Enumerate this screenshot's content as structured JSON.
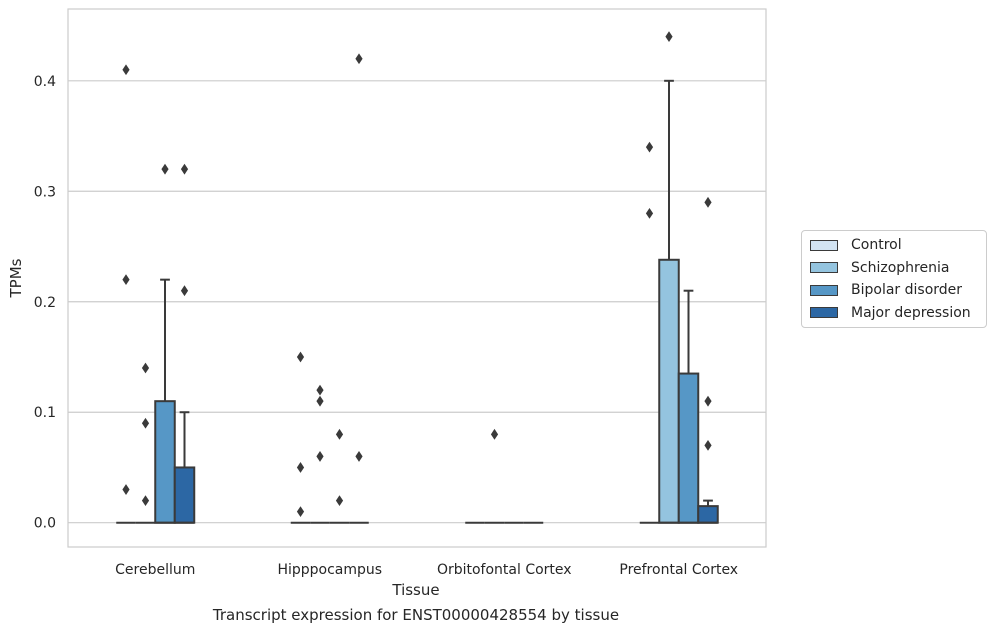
{
  "chart_data": {
    "type": "box",
    "xlabel": "Tissue",
    "ylabel": "TPMs",
    "ylim": [
      -0.022,
      0.465
    ],
    "yticks": [
      0.0,
      0.1,
      0.2,
      0.3,
      0.4
    ],
    "ytick_labels": [
      "0.0",
      "0.1",
      "0.2",
      "0.3",
      "0.4"
    ],
    "grid": "horizontal",
    "legend_position": "right",
    "categories": [
      "Cerebellum",
      "Hipppocampus",
      "Orbitofontal Cortex",
      "Prefrontal Cortex"
    ],
    "series": [
      {
        "name": "Control",
        "color": "#d3e4f3",
        "boxes": [
          {
            "q1": 0,
            "median": 0,
            "q3": 0,
            "whisker_low": 0,
            "whisker_high": 0,
            "outliers": [
              0.03,
              0.22,
              0.41
            ]
          },
          {
            "q1": 0,
            "median": 0,
            "q3": 0,
            "whisker_low": 0,
            "whisker_high": 0,
            "outliers": [
              0.01,
              0.05,
              0.15
            ]
          },
          {
            "q1": 0,
            "median": 0,
            "q3": 0,
            "whisker_low": 0,
            "whisker_high": 0,
            "outliers": []
          },
          {
            "q1": 0,
            "median": 0,
            "q3": 0,
            "whisker_low": 0,
            "whisker_high": 0,
            "outliers": [
              0.28,
              0.34
            ]
          }
        ]
      },
      {
        "name": "Schizophrenia",
        "color": "#94c4df",
        "boxes": [
          {
            "q1": 0,
            "median": 0,
            "q3": 0,
            "whisker_low": 0,
            "whisker_high": 0,
            "outliers": [
              0.02,
              0.09,
              0.14
            ]
          },
          {
            "q1": 0,
            "median": 0,
            "q3": 0,
            "whisker_low": 0,
            "whisker_high": 0,
            "outliers": [
              0.06,
              0.11,
              0.12
            ]
          },
          {
            "q1": 0,
            "median": 0,
            "q3": 0,
            "whisker_low": 0,
            "whisker_high": 0,
            "outliers": [
              0.08
            ]
          },
          {
            "q1": 0,
            "median": 0,
            "q3": 0.238,
            "whisker_low": 0,
            "whisker_high": 0.4,
            "outliers": [
              0.44
            ]
          }
        ]
      },
      {
        "name": "Bipolar disorder",
        "color": "#5697c6",
        "boxes": [
          {
            "q1": 0,
            "median": 0,
            "q3": 0.11,
            "whisker_low": 0,
            "whisker_high": 0.22,
            "outliers": [
              0.32
            ]
          },
          {
            "q1": 0,
            "median": 0,
            "q3": 0,
            "whisker_low": 0,
            "whisker_high": 0,
            "outliers": [
              0.02,
              0.08
            ]
          },
          {
            "q1": 0,
            "median": 0,
            "q3": 0,
            "whisker_low": 0,
            "whisker_high": 0,
            "outliers": []
          },
          {
            "q1": 0,
            "median": 0,
            "q3": 0.135,
            "whisker_low": 0,
            "whisker_high": 0.21,
            "outliers": []
          }
        ]
      },
      {
        "name": "Major depression",
        "color": "#2c67a4",
        "boxes": [
          {
            "q1": 0,
            "median": 0,
            "q3": 0.05,
            "whisker_low": 0,
            "whisker_high": 0.1,
            "outliers": [
              0.21,
              0.32
            ]
          },
          {
            "q1": 0,
            "median": 0,
            "q3": 0,
            "whisker_low": 0,
            "whisker_high": 0,
            "outliers": [
              0.06,
              0.42
            ]
          },
          {
            "q1": 0,
            "median": 0,
            "q3": 0,
            "whisker_low": 0,
            "whisker_high": 0,
            "outliers": []
          },
          {
            "q1": 0,
            "median": 0,
            "q3": 0.015,
            "whisker_low": 0,
            "whisker_high": 0.02,
            "outliers": [
              0.07,
              0.11,
              0.29
            ]
          }
        ]
      }
    ]
  },
  "caption": "Transcript expression for ENST00000428554 by tissue",
  "colors": {
    "line": "#3a3a3a",
    "grid": "#cccccc",
    "frame": "#cccccc"
  }
}
